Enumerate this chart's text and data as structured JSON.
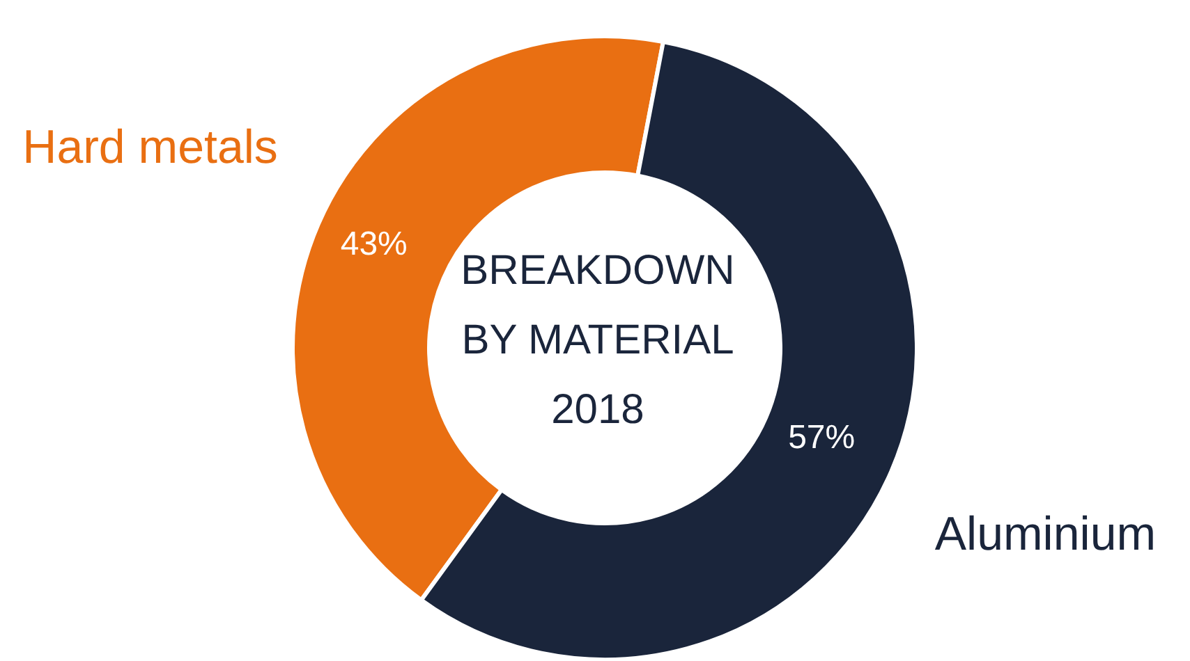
{
  "chart_data": {
    "type": "donut",
    "title": "BREAKDOWN BY MATERIAL 2018",
    "categories": [
      "Hard metals",
      "Aluminium"
    ],
    "values": [
      43,
      57
    ],
    "colors": [
      "#e96f12",
      "#1a253b"
    ],
    "value_labels": [
      "43%",
      "57%"
    ]
  }
}
